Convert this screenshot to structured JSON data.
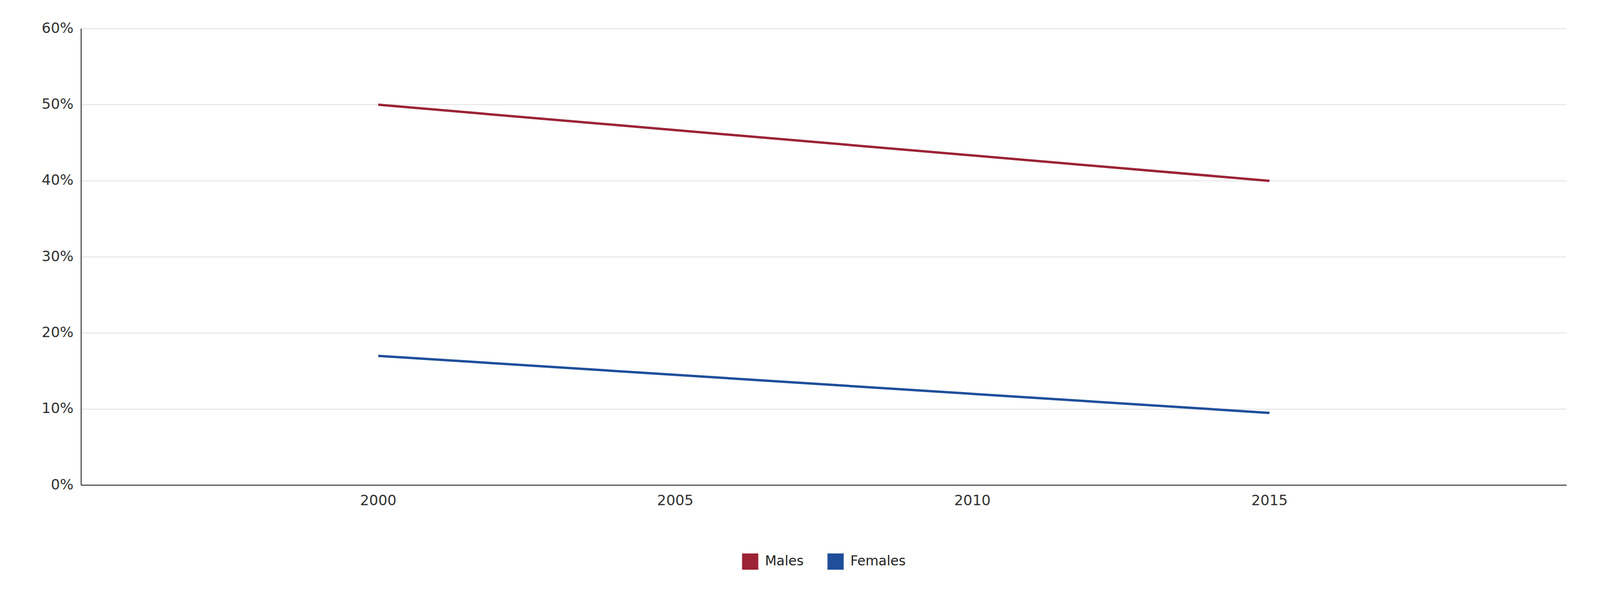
{
  "chart_data": {
    "type": "line",
    "x": [
      2000,
      2015
    ],
    "series": [
      {
        "name": "Males",
        "color": "#9B2335",
        "values": [
          0.5,
          0.4
        ]
      },
      {
        "name": "Females",
        "color": "#1F4E9B",
        "values": [
          0.17,
          0.095
        ]
      }
    ],
    "xlim": [
      1995,
      2020
    ],
    "xticks": [
      2000,
      2005,
      2010,
      2015
    ],
    "ylim": [
      0,
      0.6
    ],
    "yticks": [
      {
        "value": 0.0,
        "label": "0%"
      },
      {
        "value": 0.1,
        "label": "10%"
      },
      {
        "value": 0.2,
        "label": "20%"
      },
      {
        "value": 0.3,
        "label": "30%"
      },
      {
        "value": 0.4,
        "label": "40%"
      },
      {
        "value": 0.5,
        "label": "50%"
      },
      {
        "value": 0.6,
        "label": "60%"
      }
    ],
    "grid": true,
    "legend": "bottom"
  }
}
